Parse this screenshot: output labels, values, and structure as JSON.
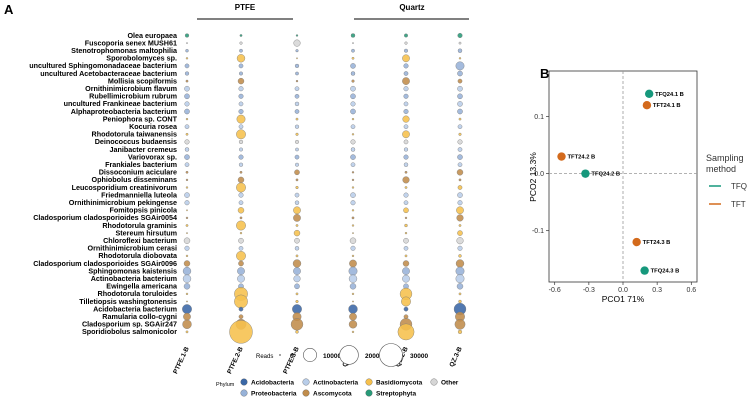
{
  "panel_a": {
    "label": "A",
    "group_ptfe": "PTFE",
    "group_quartz": "Quartz",
    "samples": [
      "PTFE.1-B",
      "PTFE.2-B",
      "PTFE.3-B",
      "QZ.1-B",
      "QZ.2-B",
      "QZ.3-B"
    ],
    "taxa": [
      "Olea europaea",
      "Fuscoporia senex MUSH61",
      "Stenotrophomonas maltophilia",
      "Sporobolomyces sp.",
      "uncultured Sphingomonadaceae bacterium",
      "uncultured Acetobacteraceae bacterium",
      "Mollisia scopiformis",
      "Ornithinimicrobium flavum",
      "Rubellimicrobium rubrum",
      "uncultured Frankineae bacterium",
      "Alphaproteobacteria bacterium",
      "Peniophora sp. CONT",
      "Kocuria rosea",
      "Rhodotorula taiwanensis",
      "Deinococcus budaensis",
      "Janibacter cremeus",
      "Variovorax sp.",
      "Frankiales bacterium",
      "Dissoconium aciculare",
      "Ophiobolus disseminans",
      "Leucosporidium creatinivorum",
      "Friedmanniella luteola",
      "Ornithinimicrobium pekingense",
      "Fomitopsis pinicola",
      "Cladosporium cladosporioides SGAir0054",
      "Rhodotorula graminis",
      "Stereum hirsutum",
      "Chloroflexi bacterium",
      "Ornithinimicrobium cerasi",
      "Rhodotorula diobovata",
      "Cladosporium cladosporioides SGAir0096",
      "Sphingomonas kaistensis",
      "Actinobacteria bacterium",
      "Ewingella americana",
      "Rhodotorula toruloides",
      "Tilletiopsis washingtonensis",
      "Acidobacteria bacterium",
      "Ramularia collo-cygni",
      "Cladosporium sp. SGAir247",
      "Sporidiobolus salmonicolor"
    ],
    "taxa_phylum": [
      "Streptophyta",
      "Other",
      "Proteobacteria",
      "Basidiomycota",
      "Proteobacteria",
      "Proteobacteria",
      "Ascomycota",
      "Actinobacteria",
      "Proteobacteria",
      "Actinobacteria",
      "Proteobacteria",
      "Basidiomycota",
      "Actinobacteria",
      "Basidiomycota",
      "Other",
      "Actinobacteria",
      "Proteobacteria",
      "Actinobacteria",
      "Ascomycota",
      "Ascomycota",
      "Basidiomycota",
      "Actinobacteria",
      "Actinobacteria",
      "Basidiomycota",
      "Ascomycota",
      "Basidiomycota",
      "Basidiomycota",
      "Other",
      "Actinobacteria",
      "Basidiomycota",
      "Ascomycota",
      "Proteobacteria",
      "Actinobacteria",
      "Proteobacteria",
      "Basidiomycota",
      "Basidiomycota",
      "Acidobacteria",
      "Ascomycota",
      "Ascomycota",
      "Basidiomycota"
    ],
    "reads": [
      [
        800,
        300,
        200,
        900,
        700,
        1200
      ],
      [
        100,
        400,
        2500,
        100,
        400,
        300
      ],
      [
        500,
        600,
        400,
        600,
        700,
        900
      ],
      [
        200,
        3500,
        100,
        300,
        3000,
        200
      ],
      [
        1000,
        1000,
        800,
        1500,
        1200,
        4000
      ],
      [
        800,
        700,
        600,
        900,
        1000,
        1500
      ],
      [
        300,
        2000,
        200,
        400,
        3000,
        1000
      ],
      [
        1500,
        1200,
        1000,
        1500,
        1200,
        1500
      ],
      [
        1500,
        1200,
        1000,
        1500,
        1200,
        1500
      ],
      [
        1200,
        1000,
        900,
        1200,
        1000,
        1500
      ],
      [
        1500,
        1200,
        1000,
        1500,
        1200,
        1500
      ],
      [
        200,
        4000,
        300,
        200,
        2500,
        300
      ],
      [
        1000,
        1000,
        800,
        1000,
        1000,
        1000
      ],
      [
        300,
        5000,
        400,
        200,
        3000,
        400
      ],
      [
        1200,
        800,
        700,
        1200,
        1000,
        1200
      ],
      [
        900,
        700,
        600,
        900,
        800,
        1000
      ],
      [
        1500,
        1200,
        1000,
        1500,
        1200,
        1500
      ],
      [
        1000,
        800,
        700,
        1000,
        900,
        1000
      ],
      [
        300,
        300,
        1500,
        200,
        300,
        2000
      ],
      [
        200,
        2000,
        300,
        200,
        2500,
        300
      ],
      [
        200,
        5000,
        400,
        200,
        300,
        1000
      ],
      [
        1500,
        1200,
        1000,
        1500,
        1200,
        1500
      ],
      [
        1200,
        1000,
        900,
        1200,
        1000,
        1200
      ],
      [
        100,
        2000,
        3000,
        200,
        1500,
        3000
      ],
      [
        200,
        300,
        3000,
        300,
        200,
        2500
      ],
      [
        300,
        5000,
        300,
        200,
        500,
        300
      ],
      [
        100,
        200,
        2000,
        100,
        200,
        1500
      ],
      [
        2000,
        1500,
        1500,
        2000,
        1500,
        2500
      ],
      [
        1200,
        1000,
        900,
        1200,
        1000,
        1200
      ],
      [
        200,
        5000,
        300,
        200,
        300,
        500
      ],
      [
        2000,
        1500,
        3500,
        3000,
        2000,
        3500
      ],
      [
        3500,
        3000,
        3000,
        4000,
        3000,
        4000
      ],
      [
        3500,
        3000,
        2500,
        3500,
        3000,
        4000
      ],
      [
        2000,
        1500,
        1500,
        2000,
        1500,
        2000
      ],
      [
        200,
        10000,
        300,
        200,
        8000,
        300
      ],
      [
        100,
        10000,
        400,
        100,
        5000,
        500
      ],
      [
        5000,
        1000,
        5000,
        4500,
        1000,
        8000
      ],
      [
        3000,
        1000,
        4000,
        3000,
        1000,
        5000
      ],
      [
        4500,
        6000,
        8000,
        3500,
        8000,
        6000
      ],
      [
        300,
        30000,
        500,
        200,
        15000,
        800
      ]
    ],
    "size_legend_title": "Reads",
    "size_legend_values": [
      0,
      10000,
      20000,
      30000
    ],
    "size_legend_labels": [
      "0",
      "10000",
      "20000",
      "30000"
    ],
    "phylum_legend_title": "Phylum",
    "phyla": [
      {
        "name": "Acidobacteria",
        "color": "#3a67a6"
      },
      {
        "name": "Actinobacteria",
        "color": "#b8cde9"
      },
      {
        "name": "Basidiomycota",
        "color": "#f6c04c"
      },
      {
        "name": "Other",
        "color": "#d6d6d6"
      },
      {
        "name": "Proteobacteria",
        "color": "#97b2d8"
      },
      {
        "name": "Ascomycota",
        "color": "#c08c4b"
      },
      {
        "name": "Streptophyta",
        "color": "#279a78"
      }
    ]
  },
  "panel_b": {
    "label": "B",
    "chart_data": {
      "type": "scatter",
      "xlabel": "PCO1  71%",
      "ylabel": "PCO2  13.3%",
      "xlim": [
        -0.65,
        0.65
      ],
      "ylim": [
        -0.19,
        0.18
      ],
      "xticks": [
        -0.6,
        -0.3,
        0.0,
        0.3,
        0.6
      ],
      "xtick_labels": [
        "-0.6",
        "-0.3",
        "0.0",
        "0.3",
        "0.6"
      ],
      "yticks": [
        -0.1,
        0.0,
        0.1
      ],
      "ytick_labels": [
        "-0.1",
        "0.0",
        "0.1"
      ],
      "points": [
        {
          "label": "TFQ24.1 B",
          "x": 0.23,
          "y": 0.14,
          "group": "TFQ"
        },
        {
          "label": "TFT24.1 B",
          "x": 0.21,
          "y": 0.12,
          "group": "TFT"
        },
        {
          "label": "TFT24.2 B",
          "x": -0.54,
          "y": 0.03,
          "group": "TFT"
        },
        {
          "label": "TFQ24.2 B",
          "x": -0.33,
          "y": 0.0,
          "group": "TFQ"
        },
        {
          "label": "TFT24.3 B",
          "x": 0.12,
          "y": -0.12,
          "group": "TFT"
        },
        {
          "label": "TFQ24.3 B",
          "x": 0.19,
          "y": -0.17,
          "group": "TFQ"
        }
      ],
      "legend_title": "Sampling method",
      "legend_title_lines": [
        "Sampling",
        "method"
      ],
      "groups": [
        {
          "name": "TFQ",
          "color": "#16987c"
        },
        {
          "name": "TFT",
          "color": "#d36a1c"
        }
      ]
    }
  }
}
